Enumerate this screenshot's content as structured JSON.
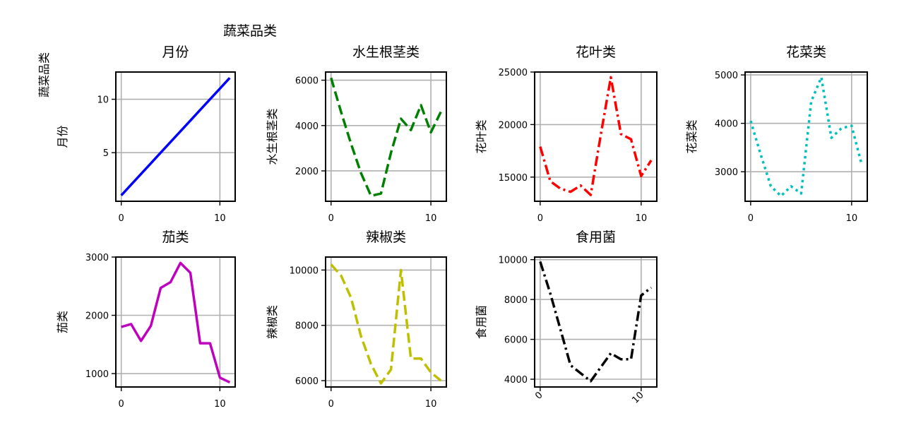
{
  "figure": {
    "suptitle": "蔬菜品类"
  },
  "chart_data": [
    {
      "type": "line",
      "title": "月份",
      "xlabel": "",
      "ylabel": "月份",
      "outer_label": "蔬菜品类",
      "x": [
        0,
        1,
        2,
        3,
        4,
        5,
        6,
        7,
        8,
        9,
        10,
        11
      ],
      "series": [
        {
          "values": [
            1,
            2,
            3,
            4,
            5,
            6,
            7,
            8,
            9,
            10,
            11,
            12
          ],
          "color": "#0000ff",
          "dash": "solid"
        }
      ],
      "xlim": [
        -0.55,
        11.55
      ],
      "ylim": [
        0.45,
        12.55
      ],
      "xticks": [
        0,
        10
      ],
      "yticks": [
        5,
        10
      ],
      "grid": true
    },
    {
      "type": "line",
      "title": "水生根茎类",
      "xlabel": "",
      "ylabel": "水生根茎类",
      "x": [
        0,
        1,
        2,
        3,
        4,
        5,
        6,
        7,
        8,
        9,
        10,
        11
      ],
      "series": [
        {
          "values": [
            6100,
            4600,
            3200,
            1900,
            900,
            1000,
            2800,
            4300,
            3800,
            4900,
            3700,
            4600
          ],
          "color": "#008000",
          "dash": "dashed"
        }
      ],
      "xlim": [
        -0.55,
        11.55
      ],
      "ylim": [
        660,
        6360
      ],
      "xticks": [
        0,
        10
      ],
      "yticks": [
        2000,
        4000,
        6000
      ],
      "grid": true
    },
    {
      "type": "line",
      "title": "花叶类",
      "xlabel": "",
      "ylabel": "花叶类",
      "x": [
        0,
        1,
        2,
        3,
        4,
        5,
        6,
        7,
        8,
        9,
        10,
        11
      ],
      "series": [
        {
          "values": [
            17900,
            14600,
            13900,
            13600,
            14200,
            13300,
            19000,
            24500,
            19100,
            18600,
            15100,
            16600
          ],
          "color": "#ff0000",
          "dash": "dashdot"
        }
      ],
      "xlim": [
        -0.55,
        11.55
      ],
      "ylim": [
        12700,
        25000
      ],
      "xticks": [
        0,
        10
      ],
      "yticks": [
        15000,
        20000,
        25000
      ],
      "grid": true
    },
    {
      "type": "line",
      "title": "花菜类",
      "xlabel": "",
      "ylabel": "花菜类",
      "x": [
        0,
        1,
        2,
        3,
        4,
        5,
        6,
        7,
        8,
        9,
        10,
        11
      ],
      "series": [
        {
          "values": [
            4050,
            3350,
            2700,
            2500,
            2700,
            2550,
            4450,
            4950,
            3700,
            3900,
            3950,
            3150
          ],
          "color": "#00bfbf",
          "dash": "dotted"
        }
      ],
      "xlim": [
        -0.55,
        11.55
      ],
      "ylim": [
        2390,
        5060
      ],
      "xticks": [
        0,
        10
      ],
      "yticks": [
        3000,
        4000,
        5000
      ],
      "grid": true
    },
    {
      "type": "line",
      "title": "茄类",
      "xlabel": "",
      "ylabel": "茄类",
      "x": [
        0,
        1,
        2,
        3,
        4,
        5,
        6,
        7,
        8,
        9,
        10,
        11
      ],
      "series": [
        {
          "values": [
            1800,
            1850,
            1560,
            1820,
            2470,
            2570,
            2900,
            2730,
            1520,
            1520,
            930,
            850
          ],
          "color": "#bf00bf",
          "dash": "solid"
        }
      ],
      "xlim": [
        -0.55,
        11.55
      ],
      "ylim": [
        770,
        3000
      ],
      "xticks": [
        0,
        10
      ],
      "yticks": [
        1000,
        2000,
        3000
      ],
      "grid": true
    },
    {
      "type": "line",
      "title": "辣椒类",
      "xlabel": "",
      "ylabel": "辣椒类",
      "x": [
        0,
        1,
        2,
        3,
        4,
        5,
        6,
        7,
        8,
        9,
        10,
        11
      ],
      "series": [
        {
          "values": [
            10200,
            9800,
            9000,
            7600,
            6600,
            5900,
            6400,
            10000,
            6800,
            6800,
            6300,
            6000
          ],
          "color": "#bfbf00",
          "dash": "dashed"
        }
      ],
      "xlim": [
        -0.55,
        11.55
      ],
      "ylim": [
        5770,
        10470
      ],
      "xticks": [
        0,
        10
      ],
      "yticks": [
        6000,
        8000,
        10000
      ],
      "grid": true
    },
    {
      "type": "line",
      "title": "食用菌",
      "xlabel": "",
      "ylabel": "食用菌",
      "x": [
        0,
        1,
        2,
        3,
        4,
        5,
        6,
        7,
        8,
        9,
        10,
        11
      ],
      "series": [
        {
          "values": [
            9900,
            8300,
            6500,
            4700,
            4300,
            3900,
            4600,
            5300,
            5000,
            5000,
            8200,
            8600
          ],
          "color": "#000000",
          "dash": "dashdot"
        }
      ],
      "xlim": [
        -0.55,
        11.55
      ],
      "ylim": [
        3610,
        10130
      ],
      "xticks": [
        0,
        10
      ],
      "yticks": [
        4000,
        6000,
        8000,
        10000
      ],
      "xtick_rotation": 45,
      "grid": true
    }
  ]
}
